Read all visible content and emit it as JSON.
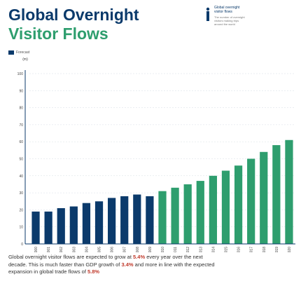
{
  "title": {
    "line1": "Global Overnight",
    "line2": "Visitor Flows"
  },
  "key": {
    "line1": "Global overnight",
    "line2": "visitor flows",
    "note1": "The number of overnight",
    "note2": "visitors making trips",
    "note3": "around the world"
  },
  "legend": {
    "label": "Forecast"
  },
  "caption": {
    "p1": "Global overnight visitor flows are expected to grow at ",
    "v1": "5.4%",
    "p2": "every year over the next decade. This is much faster than GDP growth of ",
    "v2": "3.4%",
    "p3": " and more in line with the expected expansion in global trade flows of ",
    "v3": "5.8%"
  },
  "colors": {
    "actual": "#0b3a6b",
    "forecast": "#2e9e6e",
    "title": "#0b3a6b",
    "accent": "#2e9e6e",
    "highlight": "#c0392b"
  },
  "chart_data": {
    "type": "bar",
    "ylabel": "Visitors\n(m)",
    "ylim": [
      0,
      100
    ],
    "yticks": [
      0,
      10,
      20,
      30,
      40,
      50,
      60,
      70,
      80,
      90,
      100
    ],
    "categories": [
      "2000",
      "2001",
      "2002",
      "2003",
      "2004",
      "2005",
      "2006",
      "2007",
      "2008",
      "2009",
      "2010",
      "2011",
      "2012",
      "2013",
      "2014",
      "2015",
      "2016",
      "2017",
      "2018",
      "2019",
      "2020"
    ],
    "values": [
      19,
      19,
      21,
      22,
      24,
      25,
      27,
      28,
      29,
      28,
      31,
      33,
      35,
      37,
      40,
      43,
      46,
      50,
      54,
      58,
      61
    ],
    "forecast_from": "2010"
  }
}
